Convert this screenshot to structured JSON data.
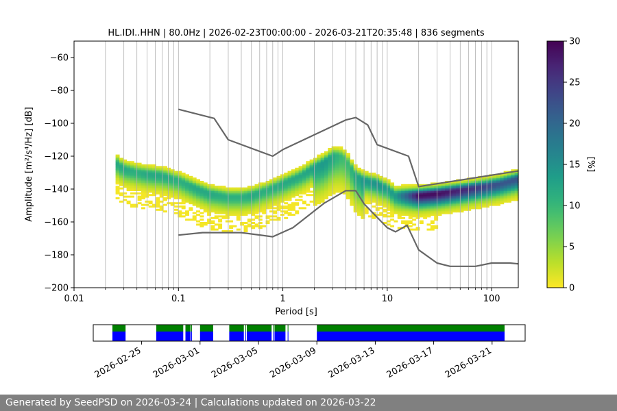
{
  "chart_data": {
    "type": "heatmap",
    "title": "HL.IDI..HHN | 80.0Hz | 2026-02-23T00:00:00 - 2026-03-21T20:35:48 | 836 segments",
    "xlabel": "Period [s]",
    "ylabel": "Amplitude [m²/s⁴/Hz] [dB]",
    "x_scale": "log",
    "xlim": [
      0.01,
      180
    ],
    "ylim": [
      -200,
      -50
    ],
    "x_ticks": [
      0.01,
      0.1,
      1,
      10,
      100
    ],
    "x_tick_labels": [
      "0.01",
      "0.1",
      "1",
      "10",
      "100"
    ],
    "y_ticks": [
      -200,
      -180,
      -160,
      -140,
      -120,
      -100,
      -80,
      -60
    ],
    "y_tick_labels": [
      "−200",
      "−180",
      "−160",
      "−140",
      "−120",
      "−100",
      "−80",
      "−60"
    ],
    "grid": "vertical-log",
    "colorbar": {
      "label": "[%]",
      "range": [
        0,
        30
      ],
      "ticks": [
        0,
        5,
        10,
        15,
        20,
        25,
        30
      ],
      "colormap": "viridis_r",
      "stops": [
        "#fde725",
        "#b5de2b",
        "#6ece58",
        "#35b779",
        "#1f9e89",
        "#26828e",
        "#31688e",
        "#3e4989",
        "#482878",
        "#440154"
      ]
    },
    "density_ridge": {
      "period": [
        0.025,
        0.03,
        0.04,
        0.05,
        0.07,
        0.1,
        0.15,
        0.2,
        0.3,
        0.4,
        0.5,
        0.7,
        1,
        1.5,
        2,
        2.5,
        3,
        3.5,
        4,
        5,
        6,
        7,
        8,
        10,
        12,
        15,
        20,
        30,
        50,
        80,
        120,
        180
      ],
      "amplitude_db": [
        -124,
        -128,
        -130,
        -131,
        -132,
        -135,
        -140,
        -143,
        -145,
        -145,
        -144,
        -141,
        -137,
        -132,
        -127,
        -124,
        -120,
        -120,
        -122,
        -132,
        -135,
        -136,
        -137,
        -140,
        -144,
        -144,
        -144,
        -143,
        -141,
        -139,
        -137,
        -134
      ],
      "peak_percent": [
        12,
        12,
        11,
        12,
        12,
        11,
        12,
        12,
        11,
        11,
        12,
        11,
        12,
        12,
        13,
        14,
        12,
        10,
        9,
        12,
        14,
        14,
        15,
        13,
        14,
        20,
        29,
        29,
        27,
        24,
        22,
        22
      ]
    },
    "series": [
      {
        "period": [
          0.1,
          0.22,
          0.3,
          0.8,
          1,
          4,
          5,
          6.5,
          8,
          16,
          20,
          180
        ],
        "amplitude_db": [
          -91.5,
          -97,
          -110,
          -120,
          -116,
          -98,
          -96.5,
          -101,
          -113,
          -120,
          -138.5,
          -129
        ]
      },
      {
        "period": [
          0.1,
          0.17,
          0.4,
          0.8,
          1.25,
          2.5,
          4,
          5,
          6,
          10,
          12,
          15.5,
          20,
          30,
          40,
          70,
          100,
          150,
          180
        ],
        "amplitude_db": [
          -168,
          -166.5,
          -166.5,
          -169,
          -163.5,
          -148.5,
          -141,
          -141,
          -149,
          -163.5,
          -166,
          -162,
          -177,
          -185,
          -187,
          -187,
          -185,
          -185,
          -185.5
        ]
      }
    ],
    "availability": {
      "dates": [
        "2026-02-25",
        "2026-03-01",
        "2026-03-05",
        "2026-03-09",
        "2026-03-13",
        "2026-03-17",
        "2026-03-21"
      ],
      "colors": {
        "data": "#0000ff",
        "gaps_ok": "#008000"
      },
      "days_with_data": [
        [
          0.0,
          0.9
        ],
        [
          3.0,
          4.85
        ],
        [
          5.0,
          5.35
        ],
        [
          5.4,
          5.45
        ],
        [
          6.0,
          6.9
        ],
        [
          8.0,
          9.0
        ],
        [
          9.1,
          9.15
        ],
        [
          9.2,
          10.9
        ],
        [
          11.0,
          11.05
        ],
        [
          11.1,
          11.85
        ],
        [
          12.0,
          12.05
        ],
        [
          12.5,
          12.45
        ],
        [
          14.0,
          27.0
        ]
      ]
    }
  },
  "footer": {
    "text": "Generated by SeedPSD on 2026-03-24 | Calculations updated on 2026-03-22"
  }
}
